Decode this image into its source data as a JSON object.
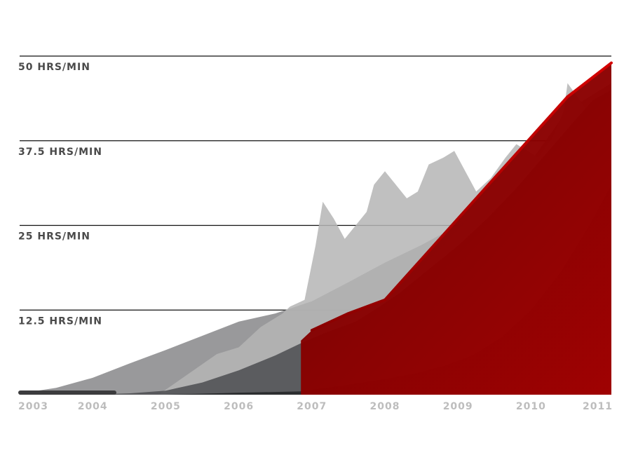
{
  "chart_data": {
    "type": "area",
    "title": "",
    "xlabel": "",
    "ylabel": "",
    "y_tick_labels": [
      "12.5 HRS/MIN",
      "25 HRS/MIN",
      "37.5 HRS/MIN",
      "50 HRS/MIN"
    ],
    "y_ticks": [
      12.5,
      25,
      37.5,
      50
    ],
    "x_tick_labels": [
      "2003",
      "2004",
      "2005",
      "2006",
      "2007",
      "2008",
      "2009",
      "2010",
      "2011"
    ],
    "x_ticks": [
      2003,
      2004,
      2005,
      2006,
      2007,
      2008,
      2009,
      2010,
      2011
    ],
    "xlim": [
      2003,
      2011.1
    ],
    "ylim": [
      0,
      50
    ],
    "grid": true,
    "colors": {
      "series_light_gray": "#b5b5b5",
      "series_mid_gray": "#8e8e90",
      "series_dark_gray": "#4f5053",
      "series_charcoal": "#2a2b2d",
      "series_red": "#8e0000",
      "gridline": "#111111"
    },
    "series": [
      {
        "color": "series_mid_gray",
        "x": [
          2003.0,
          2003.5,
          2004.0,
          2004.5,
          2005.0,
          2005.5,
          2006.0,
          2006.5,
          2007.0,
          2007.5,
          2008.0,
          2008.5,
          2009.0,
          2009.5,
          2010.0,
          2010.5,
          2011.1
        ],
        "y": [
          0.2,
          1.0,
          2.5,
          4.6,
          6.6,
          8.7,
          10.8,
          12.0,
          13.8,
          16.6,
          19.5,
          22.1,
          25.0,
          29.0,
          34.5,
          42.0,
          46.0
        ]
      },
      {
        "color": "series_light_gray",
        "x": [
          2004.9,
          2005.3,
          2005.7,
          2006.0,
          2006.3,
          2006.6,
          2006.7,
          2006.9,
          2007.05,
          2007.15,
          2007.3,
          2007.45,
          2007.6,
          2007.75,
          2007.85,
          2008.0,
          2008.15,
          2008.3,
          2008.45,
          2008.6,
          2008.8,
          2008.95,
          2009.1,
          2009.25,
          2009.45,
          2009.65,
          2009.8,
          2009.95,
          2010.1,
          2010.3,
          2010.45,
          2010.5,
          2010.7,
          2010.9,
          2011.1
        ],
        "y": [
          0.0,
          3.0,
          6.0,
          7.0,
          10.0,
          12.0,
          13.0,
          14.0,
          22.0,
          28.5,
          26.0,
          23.0,
          25.0,
          27.0,
          31.0,
          33.0,
          31.0,
          29.0,
          30.0,
          34.0,
          35.0,
          36.0,
          33.0,
          30.0,
          32.0,
          35.0,
          37.0,
          36.0,
          35.0,
          38.0,
          42.0,
          46.0,
          43.0,
          40.0,
          43.0
        ]
      },
      {
        "color": "series_dark_gray",
        "x": [
          2003.9,
          2004.5,
          2005.0,
          2005.5,
          2006.0,
          2006.5,
          2006.85,
          2007.2,
          2007.6,
          2007.9,
          2008.2,
          2008.6,
          2009.0,
          2009.4,
          2009.8,
          2010.2,
          2010.6,
          2010.85,
          2011.1
        ],
        "y": [
          0.0,
          0.2,
          0.6,
          1.8,
          3.6,
          5.8,
          7.6,
          9.2,
          10.8,
          12.8,
          15.0,
          18.5,
          22.0,
          26.0,
          30.5,
          35.5,
          40.5,
          43.5,
          45.0
        ]
      },
      {
        "color": "series_charcoal",
        "x": [
          2005.0,
          2005.5,
          2006.0,
          2006.5,
          2006.85,
          2007.2,
          2007.6,
          2008.0,
          2008.4,
          2008.8,
          2009.2,
          2009.6,
          2010.0,
          2010.4,
          2010.8,
          2011.1
        ],
        "y": [
          0.0,
          0.15,
          0.3,
          0.4,
          0.5,
          1.0,
          1.6,
          2.3,
          3.1,
          4.2,
          5.8,
          8.5,
          12.5,
          18.0,
          25.0,
          31.0
        ]
      },
      {
        "color": "series_red",
        "x": [
          2006.85,
          2007.0,
          2007.5,
          2008.0,
          2008.5,
          2009.0,
          2009.5,
          2010.0,
          2010.5,
          2011.1
        ],
        "y": [
          8.0,
          9.5,
          12.0,
          14.0,
          20.0,
          26.0,
          32.0,
          38.0,
          44.0,
          49.0
        ]
      }
    ]
  }
}
